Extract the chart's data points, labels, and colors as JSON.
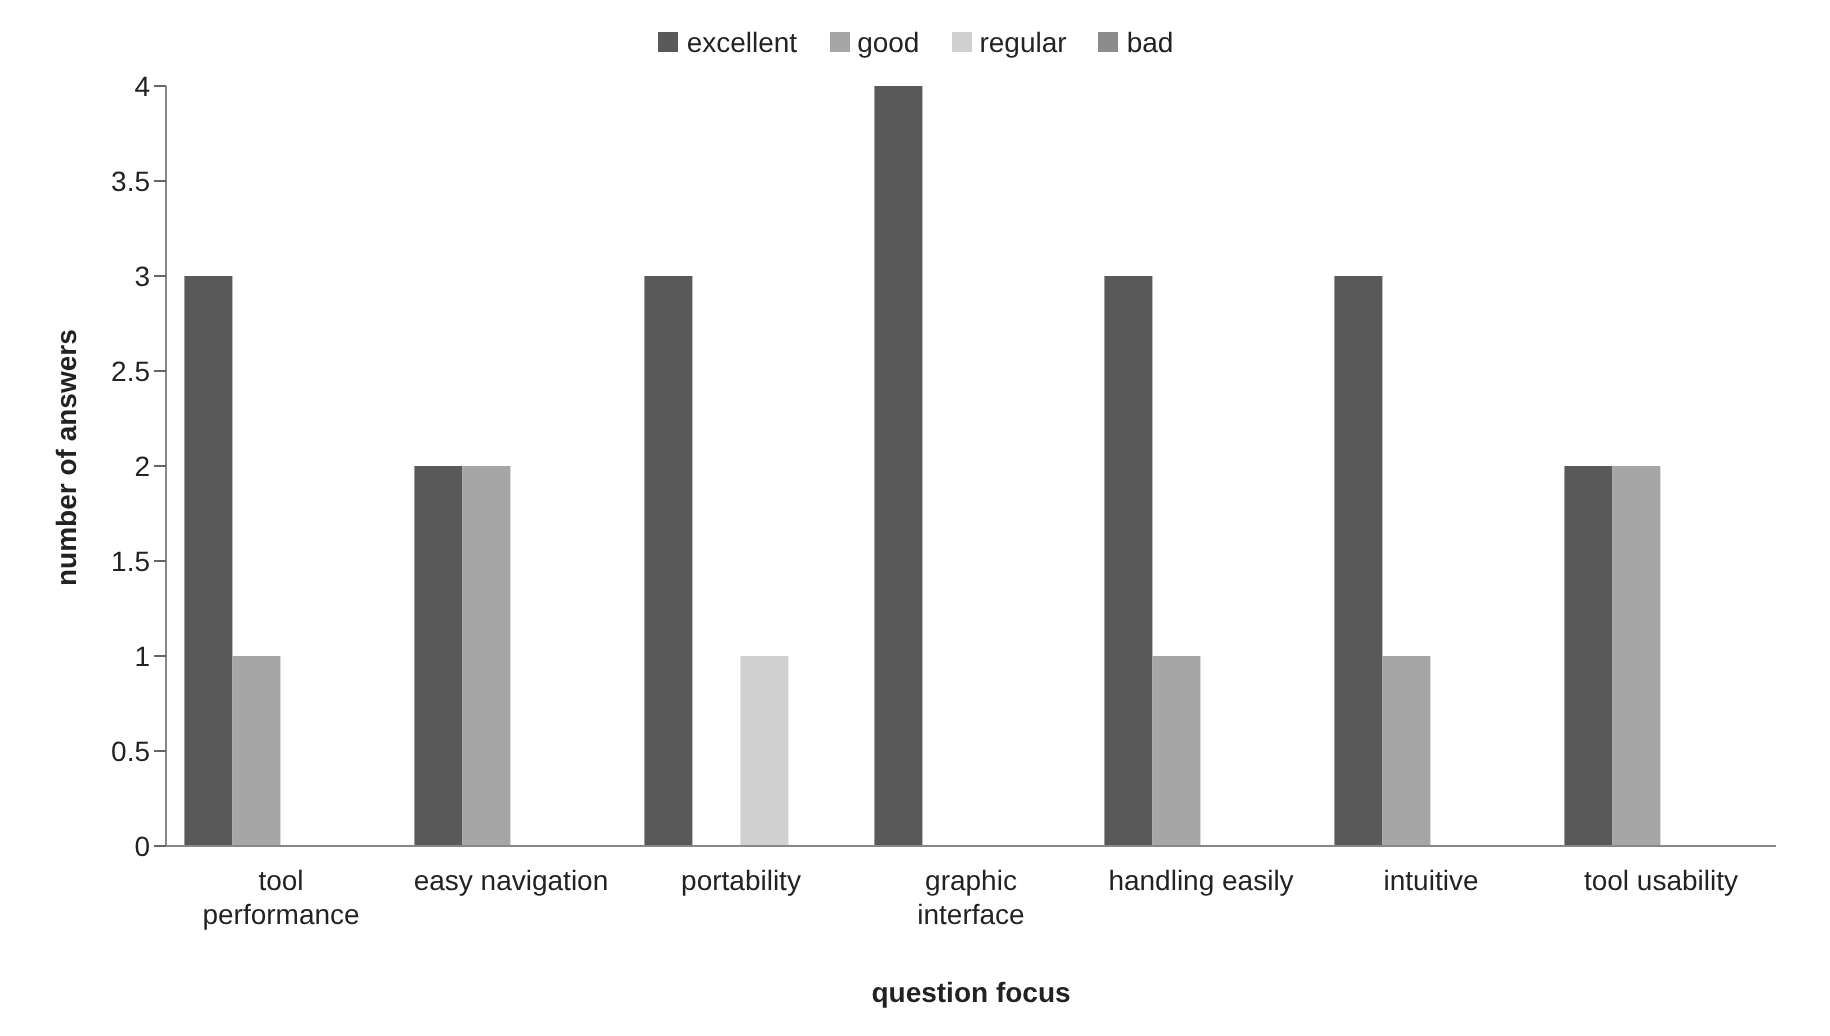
{
  "chart_data": {
    "type": "bar",
    "xlabel": "question focus",
    "ylabel": "number of answers",
    "categories": [
      "tool performance",
      "easy navigation",
      "portability",
      "graphic interface",
      "handling easily",
      "intuitive",
      "tool usability"
    ],
    "series": [
      {
        "name": "excellent",
        "color": "#595959",
        "values": [
          3,
          2,
          3,
          4,
          3,
          3,
          2
        ]
      },
      {
        "name": "good",
        "color": "#a6a6a6",
        "values": [
          1,
          2,
          0,
          0,
          1,
          1,
          2
        ]
      },
      {
        "name": "regular",
        "color": "#d0d0d0",
        "values": [
          0,
          0,
          1,
          0,
          0,
          0,
          0
        ]
      },
      {
        "name": "bad",
        "color": "#8c8c8c",
        "values": [
          0,
          0,
          0,
          0,
          0,
          0,
          0
        ]
      }
    ],
    "ylim": [
      0,
      4
    ],
    "yticks": [
      0,
      0.5,
      1,
      1.5,
      2,
      2.5,
      3,
      3.5,
      4
    ],
    "grid": false,
    "legend": "top"
  }
}
